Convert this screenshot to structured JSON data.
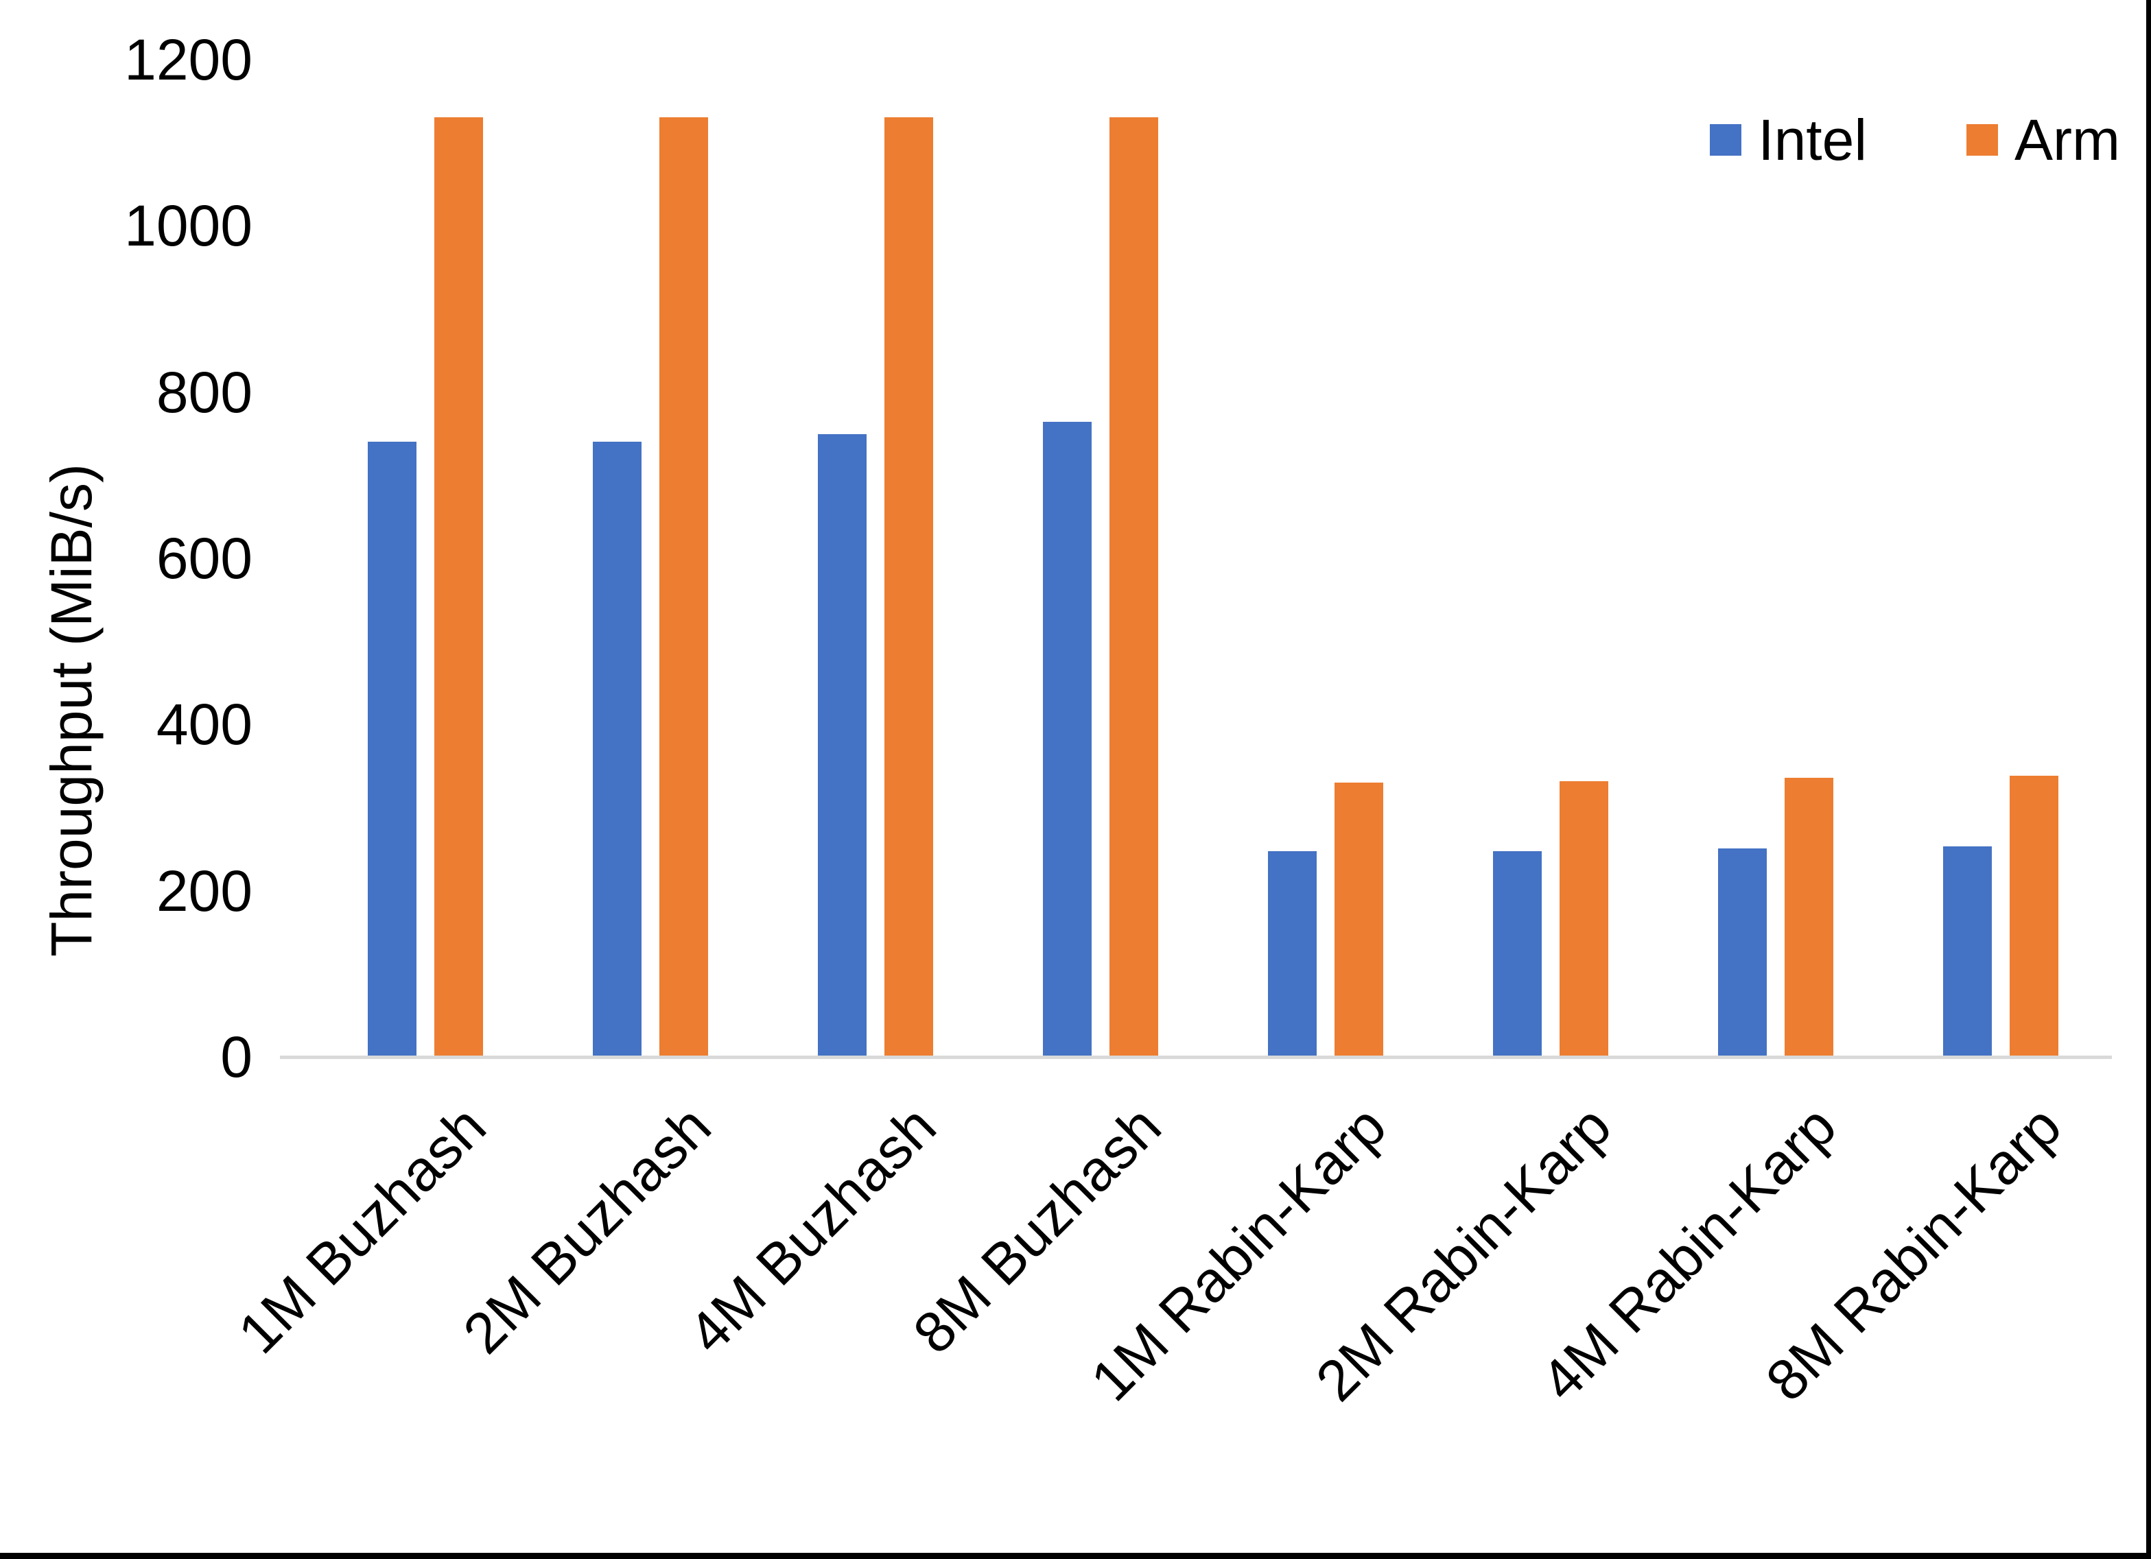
{
  "figure": {
    "background": "#FFFFFF",
    "border_bottom_color": "#000000",
    "border_right_color": "#000000"
  },
  "chart_data": {
    "type": "bar",
    "title": "",
    "xlabel": "",
    "ylabel": "Throughput (MiB/s)",
    "ylim": [
      0,
      1200
    ],
    "yticks": [
      0,
      200,
      400,
      600,
      800,
      1000,
      1200
    ],
    "grid": false,
    "axis_line_color": "#D9D9D9",
    "legend_position": "top-right",
    "categories": [
      "1M Buzhash",
      "2M Buzhash",
      "4M Buzhash",
      "8M Buzhash",
      "1M Rabin-Karp",
      "2M Rabin-Karp",
      "4M Rabin-Karp",
      "8M Rabin-Karp"
    ],
    "series": [
      {
        "name": "Intel",
        "color": "#4472C4",
        "values": [
          740,
          740,
          749,
          764,
          248,
          248,
          251,
          253
        ]
      },
      {
        "name": "Arm",
        "color": "#ED7D31",
        "values": [
          1131,
          1131,
          1131,
          1131,
          330,
          332,
          336,
          338
        ]
      }
    ]
  }
}
